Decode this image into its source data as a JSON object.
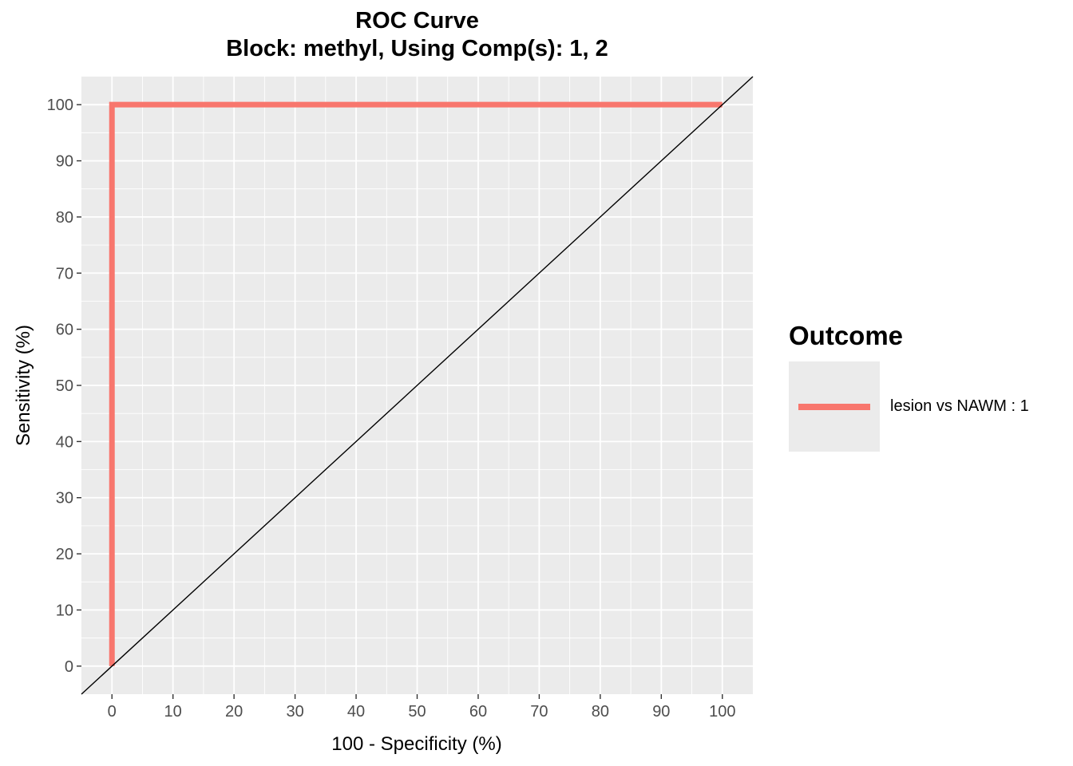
{
  "chart_data": {
    "type": "line",
    "title": "ROC Curve",
    "subtitle": "Block: methyl, Using Comp(s): 1, 2",
    "xlabel": "100 - Specificity (%)",
    "ylabel": "Sensitivity (%)",
    "xlim": [
      -5,
      105
    ],
    "ylim": [
      -5,
      105
    ],
    "x_ticks": [
      0,
      10,
      20,
      30,
      40,
      50,
      60,
      70,
      80,
      90,
      100
    ],
    "y_ticks": [
      0,
      10,
      20,
      30,
      40,
      50,
      60,
      70,
      80,
      90,
      100
    ],
    "grid": true,
    "legend": {
      "title": "Outcome",
      "placement": "right"
    },
    "series": [
      {
        "name": "lesion vs NAWM : 1",
        "color": "#F8766D",
        "x": [
          0,
          0,
          100
        ],
        "y": [
          0,
          100,
          100
        ]
      }
    ],
    "reference_line": {
      "type": "diagonal",
      "slope": 1,
      "intercept": 0,
      "color": "#000000"
    }
  }
}
